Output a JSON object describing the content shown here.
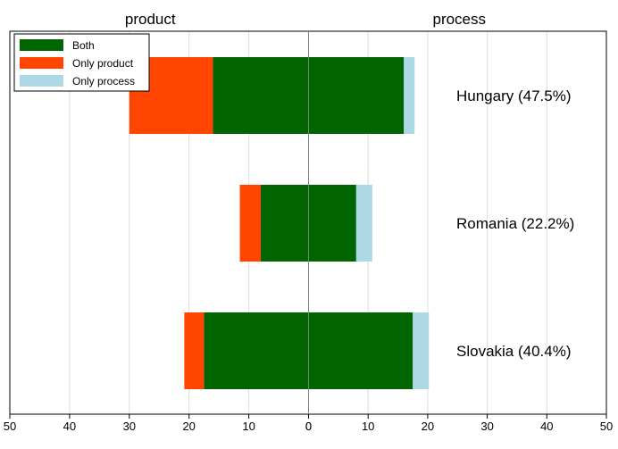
{
  "chart_data": {
    "type": "bar",
    "orientation": "horizontal",
    "layout": "mirrored",
    "panels": [
      {
        "title": "product",
        "side": "left",
        "xlim": [
          0,
          50
        ],
        "ticks": [
          "0",
          "10",
          "20",
          "30",
          "40",
          "50"
        ]
      },
      {
        "title": "process",
        "side": "right",
        "xlim": [
          0,
          50
        ],
        "ticks": [
          "0",
          "10",
          "20",
          "30",
          "40",
          "50"
        ]
      }
    ],
    "categories": [
      "Hungary (47.5%)",
      "Romania (22.2%)",
      "Slovakia (40.4%)"
    ],
    "series": [
      {
        "name": "Both",
        "color": "#006400",
        "product": [
          16,
          8,
          17.5
        ],
        "process": [
          16,
          8,
          17.5
        ]
      },
      {
        "name": "Only product",
        "color": "#ff4500",
        "product": [
          14,
          3.5,
          3.3
        ]
      },
      {
        "name": "Only process",
        "color": "#add8e6",
        "process": [
          1.8,
          2.7,
          2.7
        ]
      }
    ],
    "grid": true,
    "legend_position": "top-left"
  }
}
